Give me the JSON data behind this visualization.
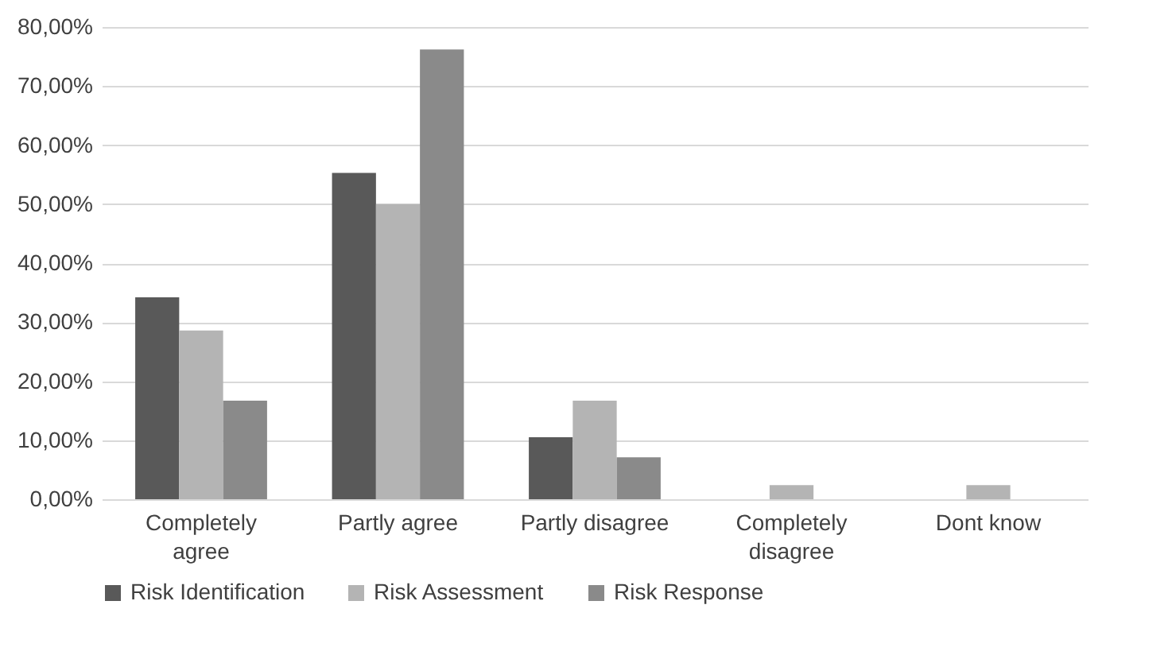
{
  "chart_data": {
    "type": "bar",
    "categories": [
      "Completely agree",
      "Partly agree",
      "Partly disagree",
      "Completely disagree",
      "Dont know"
    ],
    "series": [
      {
        "name": "Risk Identification",
        "color": "#595959",
        "values": [
          34.2,
          55.3,
          10.5,
          0,
          0
        ]
      },
      {
        "name": "Risk Assessment",
        "color": "#b4b4b4",
        "values": [
          28.6,
          50,
          16.7,
          2.4,
          2.4
        ]
      },
      {
        "name": "Risk Response",
        "color": "#8a8a8a",
        "values": [
          16.7,
          76.2,
          7.1,
          0,
          0
        ]
      }
    ],
    "ylim": [
      0,
      80
    ],
    "yticks": [
      {
        "value": 0,
        "label": "0,00%"
      },
      {
        "value": 10,
        "label": "10,00%"
      },
      {
        "value": 20,
        "label": "20,00%"
      },
      {
        "value": 30,
        "label": "30,00%"
      },
      {
        "value": 40,
        "label": "40,00%"
      },
      {
        "value": 50,
        "label": "50,00%"
      },
      {
        "value": 60,
        "label": "60,00%"
      },
      {
        "value": 70,
        "label": "70,00%"
      },
      {
        "value": 80,
        "label": "80,00%"
      }
    ],
    "grid": "y",
    "legend": "bottom"
  }
}
